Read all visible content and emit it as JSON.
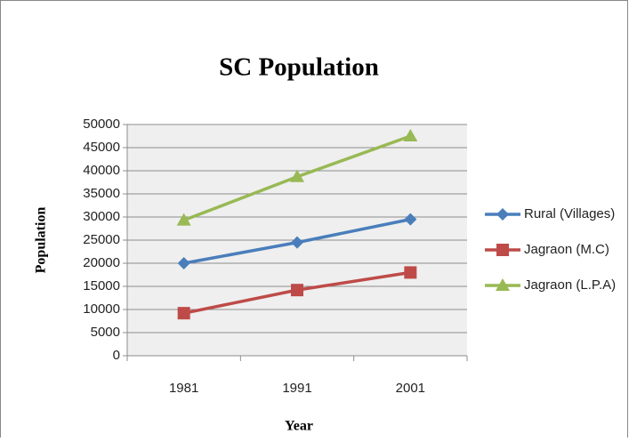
{
  "chart_data": {
    "type": "line",
    "title": "SC Population",
    "x_label": "Year",
    "y_label": "Population",
    "categories": [
      "1981",
      "1991",
      "2001"
    ],
    "series": [
      {
        "name": "Rural (Villages)",
        "color": "#4a7ebb",
        "marker": "diamond",
        "values": [
          20000,
          24500,
          29500
        ]
      },
      {
        "name": "Jagraon (M.C)",
        "color": "#be4b48",
        "marker": "square",
        "values": [
          9200,
          14200,
          18000
        ]
      },
      {
        "name": "Jagraon (L.P.A)",
        "color": "#98b954",
        "marker": "triangle",
        "values": [
          29300,
          38700,
          47500
        ]
      }
    ],
    "ylim": [
      0,
      50000
    ],
    "yticks": [
      0,
      5000,
      10000,
      15000,
      20000,
      25000,
      30000,
      35000,
      40000,
      45000,
      50000
    ],
    "grid": true,
    "legend": "right"
  }
}
